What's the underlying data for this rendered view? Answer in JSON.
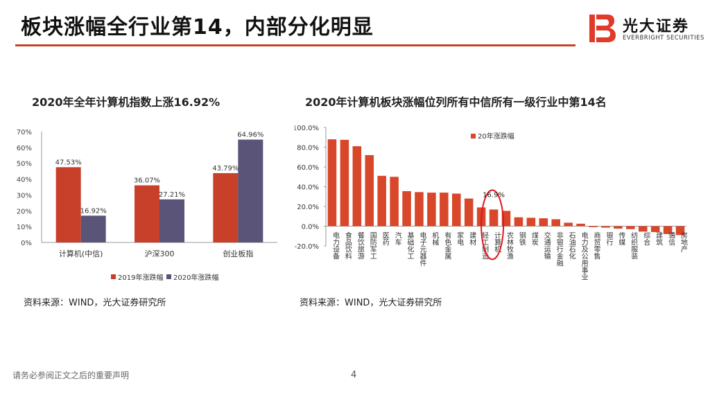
{
  "header": {
    "title": "板块涨幅全行业第14，内部分化明显",
    "logo_cn": "光大证券",
    "logo_en": "EVERBRIGHT SECURITIES"
  },
  "colors": {
    "accent": "#c8402a",
    "series2": "#5a5478",
    "bar": "#d9472b"
  },
  "footer": {
    "disclaimer": "请务必参阅正文之后的重要声明",
    "page": "4"
  },
  "left_chart": {
    "heading": "2020年全年计算机指数上涨16.92%",
    "source": "资料来源：WIND，光大证券研究所"
  },
  "right_chart": {
    "heading": "2020年计算机板块涨幅位列所有中信所有一级行业中第14名",
    "source": "资料来源：WIND，光大证券研究所",
    "highlight_label": "16.9%"
  },
  "chart_data": [
    {
      "type": "bar",
      "title": "2020年全年计算机指数上涨16.92%",
      "categories": [
        "计算机(中信)",
        "沪深300",
        "创业板指"
      ],
      "series": [
        {
          "name": "2019年涨跌幅",
          "values": [
            47.53,
            36.07,
            43.79
          ],
          "labels": [
            "47.53%",
            "36.07%",
            "43.79%"
          ]
        },
        {
          "name": "2020年涨跌幅",
          "values": [
            16.92,
            27.21,
            64.96
          ],
          "labels": [
            "16.92%",
            "27.21%",
            "64.96%"
          ]
        }
      ],
      "ylim": [
        0,
        70
      ],
      "yticks": [
        "0%",
        "10%",
        "20%",
        "30%",
        "40%",
        "50%",
        "60%",
        "70%"
      ],
      "legend": "bottom"
    },
    {
      "type": "bar",
      "title": "2020年计算机板块涨幅位列所有中信所有一级行业中第14名",
      "series_name": "20年涨跌幅",
      "categories": [
        "电力设备",
        "食品饮料",
        "餐饮旅游",
        "国防军工",
        "医药",
        "汽车",
        "基础化工",
        "电子元器件",
        "机械",
        "有色金属",
        "家电",
        "建材",
        "轻工制造",
        "计算机",
        "农林牧渔",
        "钢铁",
        "煤炭",
        "交通运输",
        "非银行金融",
        "石油石化",
        "电力及公用事业",
        "商贸零售",
        "银行",
        "传媒",
        "纺织服装",
        "综合",
        "建筑",
        "通信",
        "房地产"
      ],
      "values": [
        88,
        87.5,
        81,
        72,
        51,
        50,
        35.5,
        34.5,
        34,
        34,
        33,
        28,
        19,
        16.9,
        15.5,
        9,
        8.5,
        8,
        7,
        3.5,
        2.5,
        -1,
        -1.5,
        -2.5,
        -3,
        -5.5,
        -6,
        -8,
        -9
      ],
      "ylim": [
        -20,
        100
      ],
      "yticks": [
        "-20.0%",
        "0.0%",
        "20.0%",
        "40.0%",
        "60.0%",
        "80.0%",
        "100.0%"
      ],
      "legend": "top-left"
    }
  ]
}
